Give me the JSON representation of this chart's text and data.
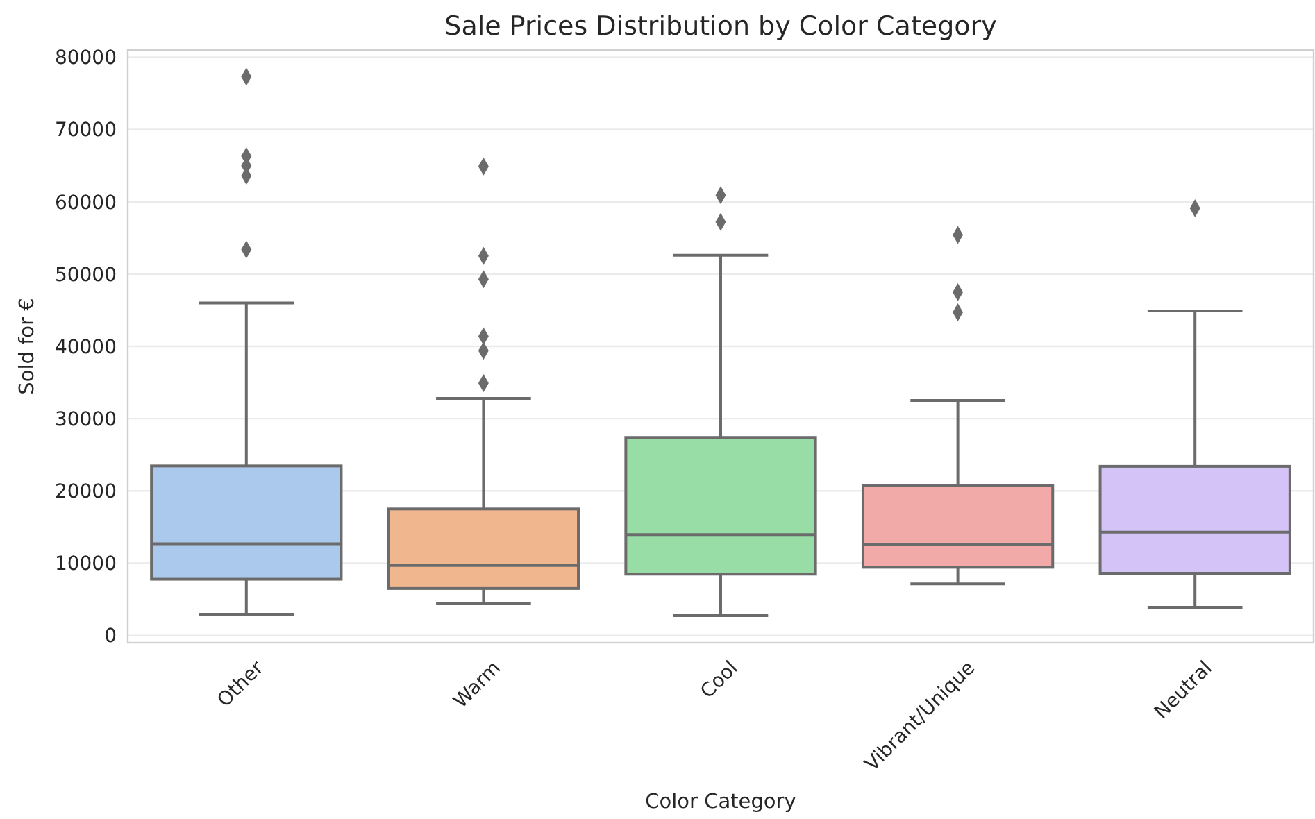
{
  "chart_data": {
    "type": "box",
    "title": "Sale Prices Distribution by Color Category",
    "xlabel": "Color Category",
    "ylabel": "Sold for €",
    "categories": [
      "Other",
      "Warm",
      "Cool",
      "Vibrant/Unique",
      "Neutral"
    ],
    "colors": [
      "#abc9ec",
      "#f0b78f",
      "#97dda5",
      "#f1aaa8",
      "#d4c3f6"
    ],
    "boxes": [
      {
        "low": 2930,
        "q1": 7780,
        "median": 12680,
        "q3": 23450,
        "high": 46000,
        "outliers": [
          77300,
          66300,
          65000,
          63600,
          53400
        ]
      },
      {
        "low": 4460,
        "q1": 6500,
        "median": 9690,
        "q3": 17500,
        "high": 32800,
        "outliers": [
          64900,
          52500,
          49300,
          41400,
          39400,
          34900
        ]
      },
      {
        "low": 2740,
        "q1": 8480,
        "median": 13960,
        "q3": 27400,
        "high": 52600,
        "outliers": [
          60900,
          57200
        ]
      },
      {
        "low": 7140,
        "q1": 9430,
        "median": 12620,
        "q3": 20700,
        "high": 32500,
        "outliers": [
          55400,
          47500,
          44700
        ]
      },
      {
        "low": 3890,
        "q1": 8600,
        "median": 14280,
        "q3": 23400,
        "high": 44900,
        "outliers": [
          59100
        ]
      }
    ],
    "ylim": [
      -1000,
      81000
    ],
    "yticks": [
      0,
      10000,
      20000,
      30000,
      40000,
      50000,
      60000,
      70000,
      80000
    ],
    "grid": "y",
    "marker": "diamond"
  }
}
